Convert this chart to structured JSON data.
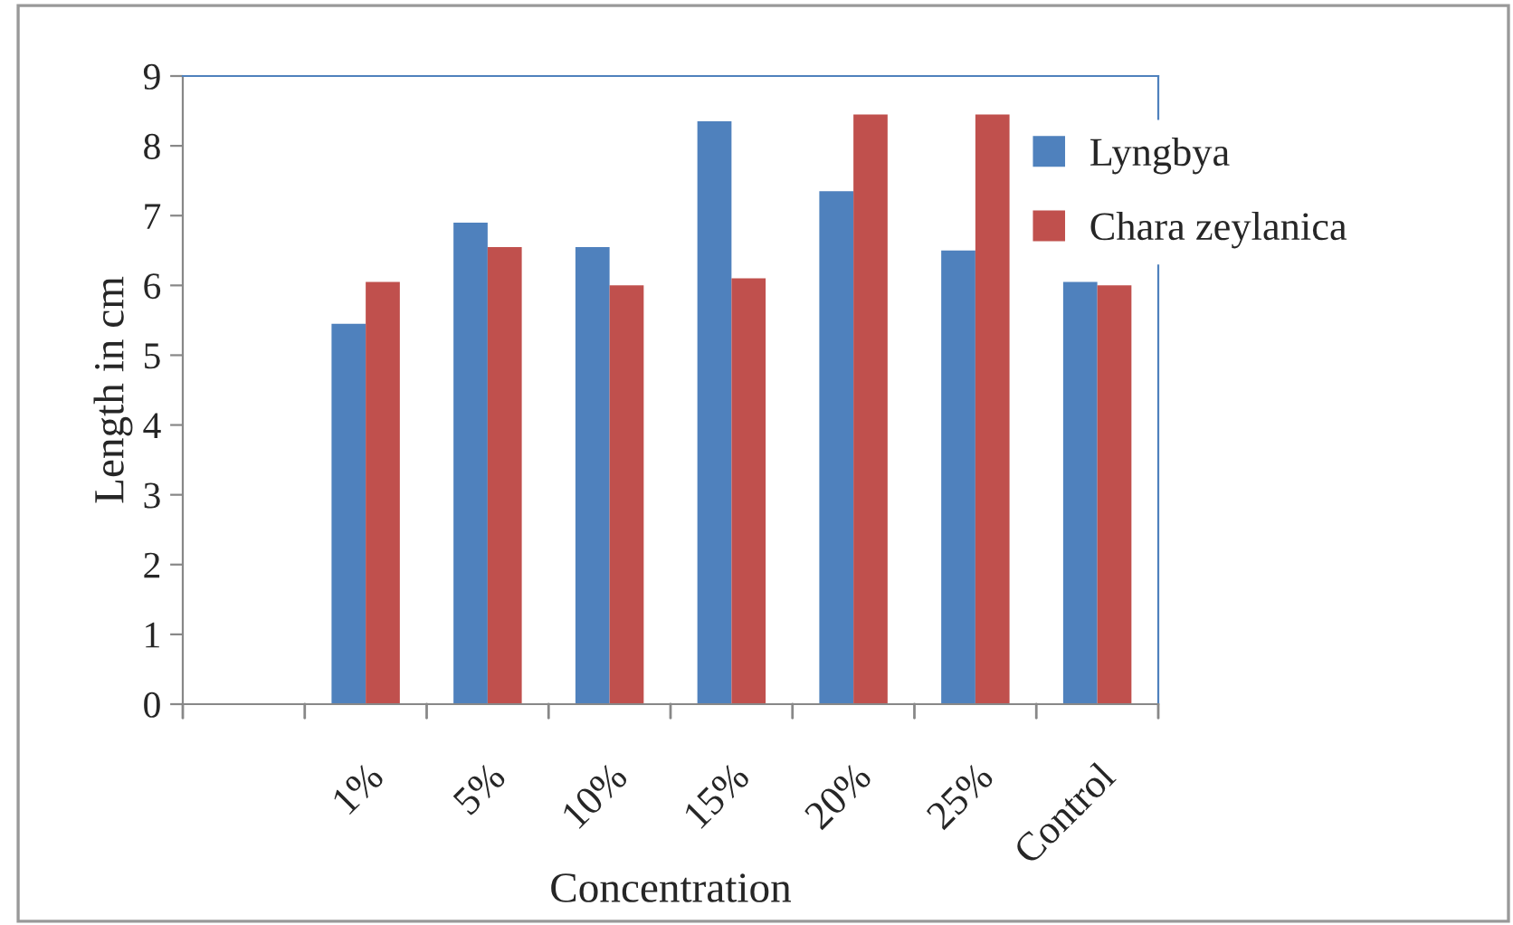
{
  "chart_data": {
    "type": "bar",
    "xlabel": "Concentration",
    "ylabel": "Length in cm",
    "categories": [
      null,
      "1%",
      "5%",
      "10%",
      "15%",
      "20%",
      "25%",
      "Control"
    ],
    "series": [
      {
        "name": "Lyngbya",
        "color": "#4f81bd",
        "values": [
          null,
          5.45,
          6.9,
          6.55,
          8.35,
          7.35,
          6.5,
          6.05
        ]
      },
      {
        "name": "Chara zeylanica",
        "color": "#c0504d",
        "values": [
          null,
          6.05,
          6.55,
          6.0,
          6.1,
          8.45,
          8.45,
          6.0
        ]
      }
    ],
    "ylim": [
      0,
      9
    ],
    "yticks": [
      0,
      1,
      2,
      3,
      4,
      5,
      6,
      7,
      8,
      9
    ],
    "grid": false,
    "legend": "right"
  }
}
